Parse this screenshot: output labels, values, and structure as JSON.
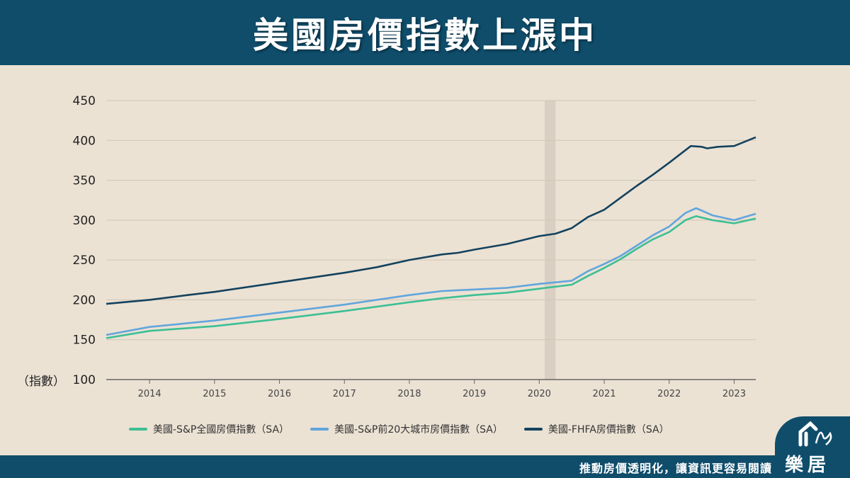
{
  "header": {
    "title": "美國房價指數上漲中"
  },
  "footer": {
    "slogan": "推動房價透明化，讓資訊更容易閱讀",
    "logo_text": "樂居"
  },
  "colors": {
    "header_bg": "#0f4d6b",
    "background": "#ebe2d4",
    "national": "#3dbf94",
    "top20": "#62a5dd",
    "fhfa": "#14425e",
    "shade": "#d9d0c3"
  },
  "chart_data": {
    "type": "line",
    "title": "美國房價指數上漲中",
    "ylabel": "（指數）",
    "ylim": [
      100,
      450
    ],
    "yticks": [
      "450",
      "400",
      "350",
      "300",
      "250",
      "200",
      "150",
      "100"
    ],
    "xlim": [
      "2013-05",
      "2023-05"
    ],
    "xticks": [
      "2014",
      "2015",
      "2016",
      "2017",
      "2018",
      "2019",
      "2020",
      "2021",
      "2022",
      "2023"
    ],
    "grid": "horizontal",
    "legend_position": "bottom",
    "shaded_period": [
      "2020-02",
      "2020-04"
    ],
    "series": [
      {
        "name": "美國-S&P全國房價指數（SA）",
        "color": "#3dbf94",
        "points": [
          [
            "2013-05",
            152
          ],
          [
            "2014-01",
            161
          ],
          [
            "2015-01",
            167
          ],
          [
            "2016-01",
            176
          ],
          [
            "2017-01",
            186
          ],
          [
            "2018-01",
            197
          ],
          [
            "2018-07",
            202
          ],
          [
            "2019-01",
            206
          ],
          [
            "2019-07",
            209
          ],
          [
            "2020-01",
            214
          ],
          [
            "2020-07",
            219
          ],
          [
            "2020-10",
            230
          ],
          [
            "2021-01",
            240
          ],
          [
            "2021-04",
            251
          ],
          [
            "2021-07",
            264
          ],
          [
            "2021-10",
            276
          ],
          [
            "2022-01",
            285
          ],
          [
            "2022-04",
            300
          ],
          [
            "2022-06",
            305
          ],
          [
            "2022-09",
            300
          ],
          [
            "2023-01",
            296
          ],
          [
            "2023-05",
            302
          ]
        ]
      },
      {
        "name": "美國-S&P前20大城市房價指數（SA）",
        "color": "#62a5dd",
        "points": [
          [
            "2013-05",
            156
          ],
          [
            "2014-01",
            166
          ],
          [
            "2015-01",
            174
          ],
          [
            "2016-01",
            184
          ],
          [
            "2017-01",
            194
          ],
          [
            "2018-01",
            206
          ],
          [
            "2018-07",
            211
          ],
          [
            "2019-01",
            213
          ],
          [
            "2019-07",
            215
          ],
          [
            "2020-01",
            220
          ],
          [
            "2020-07",
            224
          ],
          [
            "2020-10",
            236
          ],
          [
            "2021-01",
            245
          ],
          [
            "2021-04",
            255
          ],
          [
            "2021-07",
            268
          ],
          [
            "2021-10",
            281
          ],
          [
            "2022-01",
            292
          ],
          [
            "2022-04",
            309
          ],
          [
            "2022-06",
            315
          ],
          [
            "2022-09",
            306
          ],
          [
            "2023-01",
            300
          ],
          [
            "2023-05",
            308
          ]
        ]
      },
      {
        "name": "美國-FHFA房價指數（SA）",
        "color": "#14425e",
        "points": [
          [
            "2013-05",
            195
          ],
          [
            "2014-01",
            200
          ],
          [
            "2014-08",
            206
          ],
          [
            "2015-01",
            210
          ],
          [
            "2016-01",
            222
          ],
          [
            "2017-01",
            234
          ],
          [
            "2017-07",
            241
          ],
          [
            "2018-01",
            250
          ],
          [
            "2018-07",
            257
          ],
          [
            "2018-10",
            259
          ],
          [
            "2019-01",
            263
          ],
          [
            "2019-07",
            270
          ],
          [
            "2020-01",
            280
          ],
          [
            "2020-04",
            283
          ],
          [
            "2020-07",
            290
          ],
          [
            "2020-10",
            304
          ],
          [
            "2021-01",
            313
          ],
          [
            "2021-04",
            328
          ],
          [
            "2021-07",
            343
          ],
          [
            "2021-10",
            357
          ],
          [
            "2022-01",
            372
          ],
          [
            "2022-05",
            393
          ],
          [
            "2022-07",
            392
          ],
          [
            "2022-08",
            390
          ],
          [
            "2022-10",
            392
          ],
          [
            "2023-01",
            393
          ],
          [
            "2023-05",
            404
          ]
        ]
      }
    ]
  }
}
